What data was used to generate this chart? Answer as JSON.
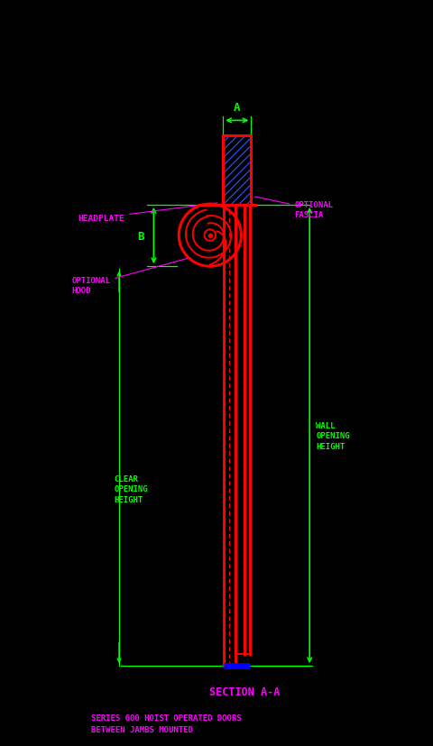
{
  "bg_color": "#000000",
  "red": "#FF0000",
  "green": "#00FF00",
  "blue": "#0000FF",
  "magenta": "#FF00FF",
  "cyan": "#00FFFF",
  "hatch_blue": "#3355FF",
  "label_headplate": "HEADPLATE",
  "label_optional_fascia": "OPTIONAL\nFASCIA",
  "label_optional_hood": "OPTIONAL\nHOOD",
  "label_B": "B",
  "label_A": "A",
  "label_clear_opening": "CLEAR\nOPENING\nHEIGHT",
  "label_wall_opening": "WALL\nOPENING\nHEIGHT",
  "label_section": "SECTION A-A",
  "label_series": "SERIES 600 HOIST OPERATED DOORS\nBETWEEN JAMBS MOUNTED",
  "xlim": [
    0,
    10
  ],
  "ylim": [
    0,
    17.25
  ],
  "figw": 4.8,
  "figh": 8.28,
  "dpi": 100
}
